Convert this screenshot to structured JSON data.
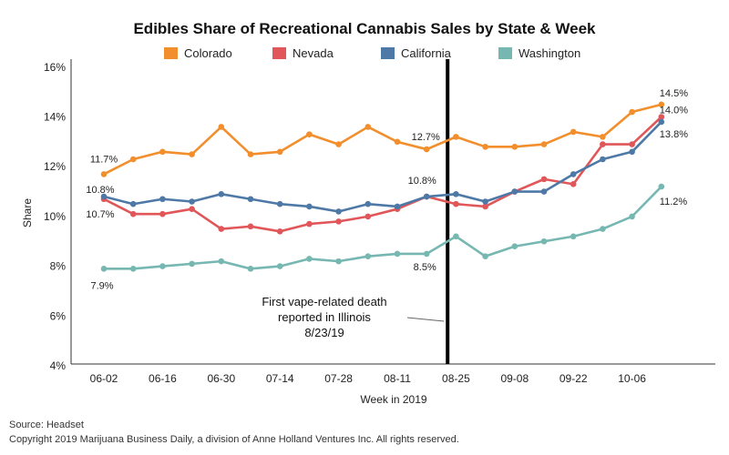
{
  "chart_data": {
    "type": "line",
    "title": "Edibles Share of Recreational Cannabis Sales by State & Week",
    "xlabel": "Week in 2019",
    "ylabel": "Share",
    "ylim": [
      4,
      16
    ],
    "yticks": [
      "4%",
      "6%",
      "8%",
      "10%",
      "12%",
      "14%",
      "16%"
    ],
    "ytick_values": [
      4,
      6,
      8,
      10,
      12,
      14,
      16
    ],
    "x": [
      "06-02",
      "06-09",
      "06-16",
      "06-23",
      "06-30",
      "07-07",
      "07-14",
      "07-21",
      "07-28",
      "08-04",
      "08-11",
      "08-18",
      "08-25",
      "09-01",
      "09-08",
      "09-15",
      "09-22",
      "09-29",
      "10-06",
      "10-13"
    ],
    "xticks": [
      "06-02",
      "06-16",
      "06-30",
      "07-14",
      "07-28",
      "08-11",
      "08-25",
      "09-08",
      "09-22",
      "10-06"
    ],
    "legend_position": "top",
    "grid": false,
    "series": [
      {
        "name": "Colorado",
        "color": "#F28E2B",
        "values": [
          11.7,
          12.3,
          12.6,
          12.5,
          13.6,
          12.5,
          12.6,
          13.3,
          12.9,
          13.6,
          13.0,
          12.7,
          13.2,
          12.8,
          12.8,
          12.9,
          13.4,
          13.2,
          14.2,
          14.5
        ]
      },
      {
        "name": "Nevada",
        "color": "#E15759",
        "values": [
          10.7,
          10.1,
          10.1,
          10.3,
          9.5,
          9.6,
          9.4,
          9.7,
          9.8,
          10.0,
          10.3,
          10.8,
          10.5,
          10.4,
          11.0,
          11.5,
          11.3,
          12.9,
          12.9,
          14.0
        ]
      },
      {
        "name": "California",
        "color": "#4E79A7",
        "values": [
          10.8,
          10.5,
          10.7,
          10.6,
          10.9,
          10.7,
          10.5,
          10.4,
          10.2,
          10.5,
          10.4,
          10.8,
          10.9,
          10.6,
          11.0,
          11.0,
          11.7,
          12.3,
          12.6,
          13.8
        ]
      },
      {
        "name": "Washington",
        "color": "#76B7B2",
        "values": [
          7.9,
          7.9,
          8.0,
          8.1,
          8.2,
          7.9,
          8.0,
          8.3,
          8.2,
          8.4,
          8.5,
          8.5,
          9.2,
          8.4,
          8.8,
          9.0,
          9.2,
          9.5,
          10.0,
          11.2
        ]
      }
    ],
    "data_labels": [
      {
        "text": "11.7%",
        "series": 0,
        "index": 0
      },
      {
        "text": "10.8%",
        "series": 2,
        "index": 0
      },
      {
        "text": "10.7%",
        "series": 1,
        "index": 0
      },
      {
        "text": "7.9%",
        "series": 3,
        "index": 0
      },
      {
        "text": "12.7%",
        "series": 0,
        "index": 11
      },
      {
        "text": "10.8%",
        "series": 1,
        "index": 11
      },
      {
        "text": "8.5%",
        "series": 3,
        "index": 11
      },
      {
        "text": "14.5%",
        "series": 0,
        "index": 19
      },
      {
        "text": "14.0%",
        "series": 1,
        "index": 19
      },
      {
        "text": "13.8%",
        "series": 2,
        "index": 19
      },
      {
        "text": "11.2%",
        "series": 3,
        "index": 19
      }
    ],
    "event_line": {
      "x": "08-23",
      "label_lines": [
        "First vape-related death",
        "reported in Illinois",
        "8/23/19"
      ]
    }
  },
  "footer": {
    "source": "Source: Headset",
    "copyright": "Copyright 2019 Marijuana Business Daily, a division of Anne Holland Ventures Inc. All rights reserved."
  }
}
